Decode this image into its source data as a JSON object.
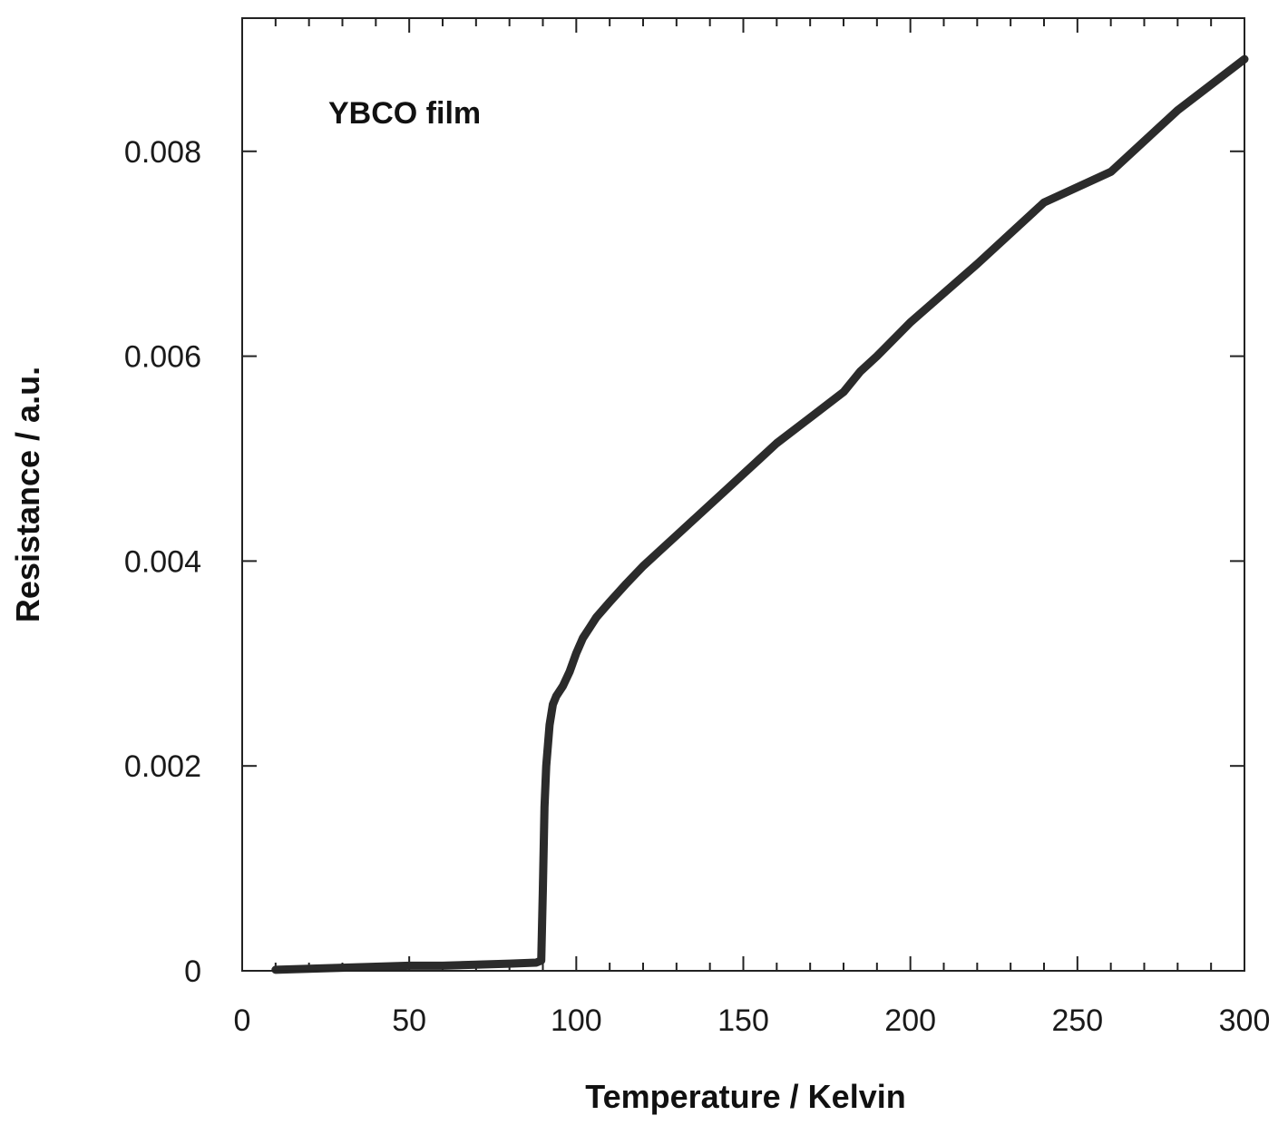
{
  "chart_data": {
    "type": "line",
    "title": "",
    "annotation": "YBCO  film",
    "xlabel": "Temperature  /  Kelvin",
    "ylabel": "Resistance  /  a.u.",
    "xlim": [
      0,
      300
    ],
    "ylim": [
      0,
      0.0093
    ],
    "x_ticks": [
      0,
      50,
      100,
      150,
      200,
      250,
      300
    ],
    "x_tick_labels": [
      "0",
      "50",
      "100",
      "150",
      "200",
      "250",
      "300"
    ],
    "y_ticks": [
      0,
      0.002,
      0.004,
      0.006,
      0.008
    ],
    "y_tick_labels": [
      "0",
      "0.002",
      "0.004",
      "0.006",
      "0.008"
    ],
    "grid": false,
    "line_color": "#2b2b2b",
    "series": [
      {
        "x": [
          10,
          20,
          30,
          40,
          50,
          60,
          70,
          80,
          88,
          89.5,
          90,
          90.5,
          91,
          92,
          93,
          94,
          96,
          98,
          100,
          102,
          104,
          106,
          110,
          115,
          120,
          125,
          130,
          135,
          140,
          145,
          150,
          155,
          160,
          170,
          180,
          185,
          190,
          200,
          220,
          240,
          260,
          280,
          300
        ],
        "y": [
          1e-05,
          2e-05,
          3e-05,
          4e-05,
          5e-05,
          5e-05,
          6e-05,
          7e-05,
          8e-05,
          0.0001,
          0.0008,
          0.0016,
          0.002,
          0.0024,
          0.0026,
          0.00268,
          0.00278,
          0.00292,
          0.0031,
          0.00325,
          0.00335,
          0.00345,
          0.0036,
          0.00378,
          0.00395,
          0.0041,
          0.00425,
          0.0044,
          0.00455,
          0.0047,
          0.00485,
          0.005,
          0.00515,
          0.0054,
          0.00565,
          0.00585,
          0.006,
          0.00633,
          0.0069,
          0.0075,
          0.0078,
          0.0084,
          0.0089
        ]
      }
    ]
  }
}
